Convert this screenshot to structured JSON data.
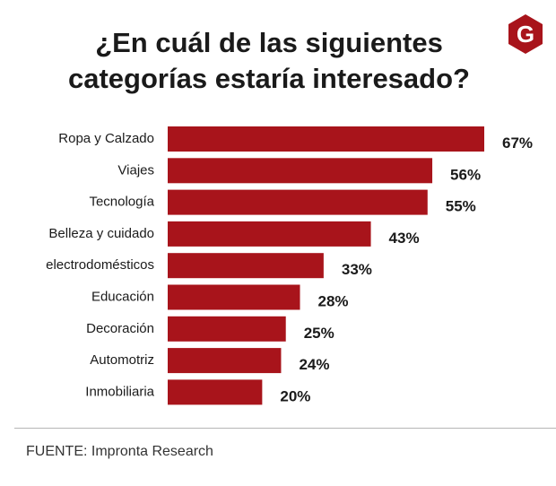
{
  "title": {
    "line1": "¿En cuál de las siguientes",
    "line2": "categorías estaría interesado?"
  },
  "logo": {
    "letter": "G",
    "icon": "g-logo-icon",
    "color": "#a8141b"
  },
  "source": "FUENTE: Impronta Research",
  "colors": {
    "bar": "#a8141b",
    "text": "#1a1a1a"
  },
  "chart_data": {
    "type": "bar",
    "orientation": "horizontal",
    "title": "¿En cuál de las siguientes categorías estaría interesado?",
    "categories": [
      "Ropa y Calzado",
      "Viajes",
      "Tecnología",
      "Belleza y cuidado",
      "electrodomésticos",
      "Educación",
      "Decoración",
      "Automotriz",
      "Inmobiliaria"
    ],
    "values": [
      67,
      56,
      55,
      43,
      33,
      28,
      25,
      24,
      20
    ],
    "value_labels": [
      "67%",
      "56%",
      "55%",
      "43%",
      "33%",
      "28%",
      "25%",
      "24%",
      "20%"
    ],
    "unit": "%",
    "xlim": [
      0,
      67
    ],
    "grid": false,
    "legend": "none"
  }
}
